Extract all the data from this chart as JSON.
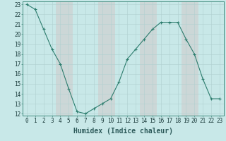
{
  "x": [
    0,
    1,
    2,
    3,
    4,
    5,
    6,
    7,
    8,
    9,
    10,
    11,
    12,
    13,
    14,
    15,
    16,
    17,
    18,
    19,
    20,
    21,
    22,
    23
  ],
  "y": [
    23,
    22.5,
    20.5,
    18.5,
    17,
    14.5,
    12.2,
    12,
    12.5,
    13,
    13.5,
    15.2,
    17.5,
    18.5,
    19.5,
    20.5,
    21.2,
    21.2,
    21.2,
    19.5,
    18,
    15.5,
    13.5,
    13.5
  ],
  "line_color": "#2d7d6e",
  "marker": "+",
  "bg_color": "#c8e8e8",
  "grid_color": "#b0d0d0",
  "pink_col_color": "#d4b8b8",
  "xlabel": "Humidex (Indice chaleur)",
  "xlim": [
    -0.5,
    23.5
  ],
  "ylim_min": 11.8,
  "ylim_max": 23.3,
  "yticks": [
    12,
    13,
    14,
    15,
    16,
    17,
    18,
    19,
    20,
    21,
    22,
    23
  ],
  "xticks": [
    0,
    1,
    2,
    3,
    4,
    5,
    6,
    7,
    8,
    9,
    10,
    11,
    12,
    13,
    14,
    15,
    16,
    17,
    18,
    19,
    20,
    21,
    22,
    23
  ],
  "pink_cols": [
    4,
    5,
    9,
    10,
    14,
    15,
    19,
    20
  ],
  "tick_label_fontsize": 5.5,
  "xlabel_fontsize": 7,
  "xlabel_color": "#2d5a5a",
  "line_width": 0.8,
  "marker_size": 3.5
}
